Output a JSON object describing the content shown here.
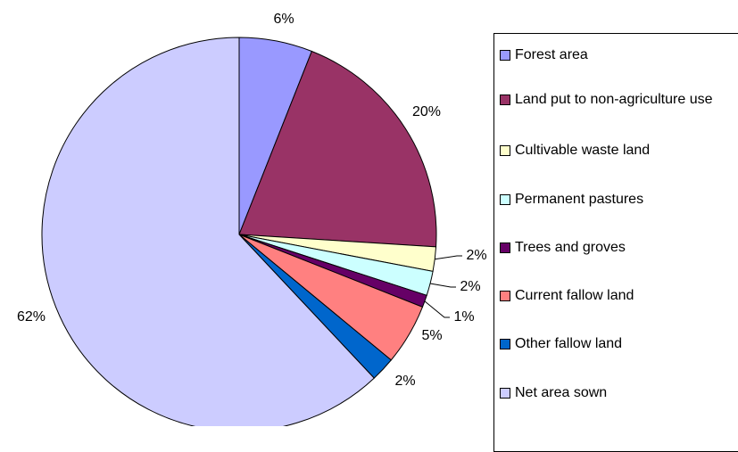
{
  "chart_data": {
    "type": "pie",
    "categories": [
      "Forest area",
      "Land put to non-agriculture use",
      "Cultivable waste land",
      "Permanent pastures",
      "Trees and groves",
      "Current fallow land",
      "Other fallow land",
      "Net area sown"
    ],
    "values": [
      6,
      20,
      2,
      2,
      1,
      5,
      2,
      62
    ],
    "value_labels": [
      "6%",
      "20%",
      "2%",
      "2%",
      "1%",
      "5%",
      "2%",
      "62%"
    ],
    "colors": [
      "#9999ff",
      "#993366",
      "#ffffcc",
      "#ccffff",
      "#660066",
      "#ff8080",
      "#0066cc",
      "#ccccff"
    ]
  }
}
